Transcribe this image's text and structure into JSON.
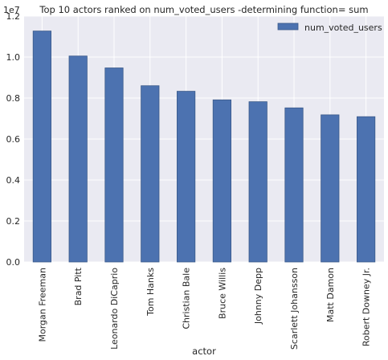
{
  "chart_data": {
    "type": "bar",
    "title": "Top 10 actors ranked on num_voted_users -determining function= sum",
    "xlabel": "actor",
    "ylabel": "",
    "offset_text": "1e7",
    "categories": [
      "Morgan Freeman",
      "Brad Pitt",
      "Leonardo DiCaprio",
      "Tom Hanks",
      "Christian Bale",
      "Bruce Willis",
      "Johnny Depp",
      "Scarlett Johansson",
      "Matt Damon",
      "Robert Downey Jr."
    ],
    "series": [
      {
        "name": "num_voted_users",
        "values": [
          11270000,
          10050000,
          9470000,
          8600000,
          8330000,
          7910000,
          7820000,
          7520000,
          7180000,
          7090000
        ]
      }
    ],
    "ylim": [
      0,
      12000000
    ],
    "y_ticks": [
      0,
      2000000,
      4000000,
      6000000,
      8000000,
      10000000,
      12000000
    ],
    "y_tick_labels": [
      "0.0",
      "0.2",
      "0.4",
      "0.6",
      "0.8",
      "1.0",
      "1.2"
    ],
    "grid": true,
    "legend_position": "top-right",
    "colors": {
      "bar": "#4c72b0",
      "bar_edge": "#3b5a8a",
      "plot_background": "#eaeaf2",
      "grid": "#ffffff",
      "text": "#262626"
    }
  }
}
